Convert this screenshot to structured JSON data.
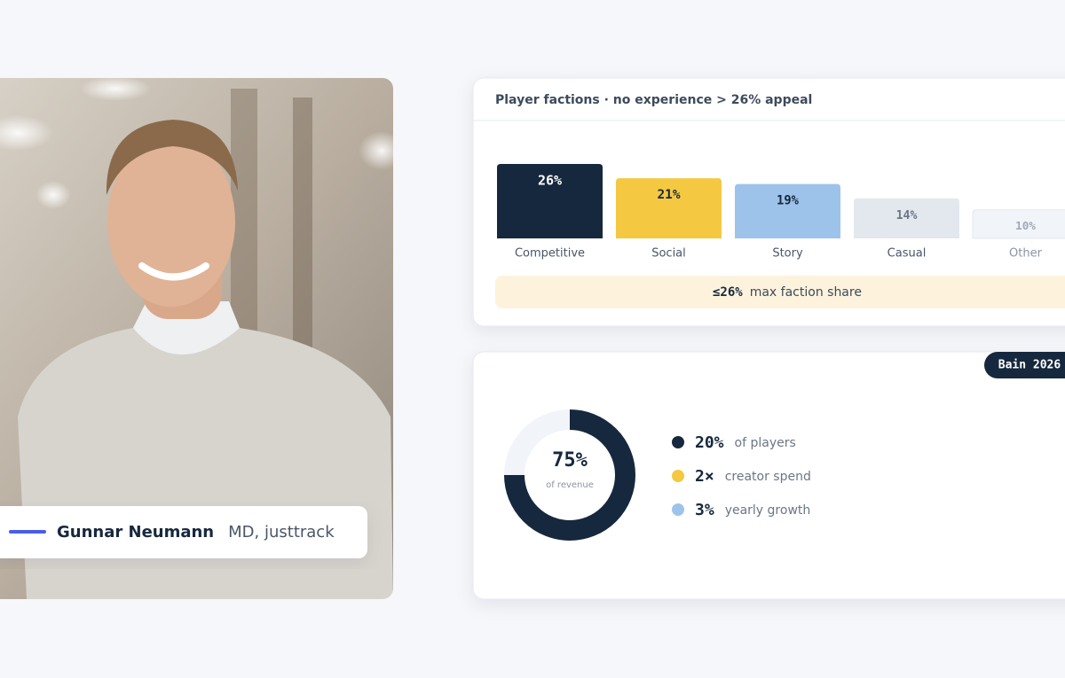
{
  "profile": {
    "name": "Gunnar Neumann",
    "role": "MD, justtrack"
  },
  "factions_card": {
    "title": "Player factions · no experience > 26% appeal",
    "categories": [
      "Competitive",
      "Social",
      "Story",
      "Casual",
      "Other"
    ],
    "values": [
      26,
      21,
      19,
      14,
      10
    ],
    "value_labels": [
      "26%",
      "21%",
      "19%",
      "14%",
      "10%"
    ],
    "colors": [
      "#16283d",
      "#f5c842",
      "#9dc3ea",
      "#e3e8ef",
      "#f1f4f8"
    ],
    "note": {
      "value_label": "≤26%",
      "text": "max faction share"
    }
  },
  "revenue_card": {
    "badge": "Bain 2026",
    "donut": {
      "value": 75,
      "value_label": "75%",
      "caption": "of revenue",
      "color": "#16283d",
      "track_color": "#f1f4f8"
    },
    "stats": [
      {
        "value_label": "20%",
        "text": "of players",
        "color": "#16283d"
      },
      {
        "value_label": "2×",
        "text": "creator spend",
        "color": "#f5c842"
      },
      {
        "value_label": "3%",
        "text": "yearly growth",
        "color": "#9dc3ea"
      }
    ]
  }
}
